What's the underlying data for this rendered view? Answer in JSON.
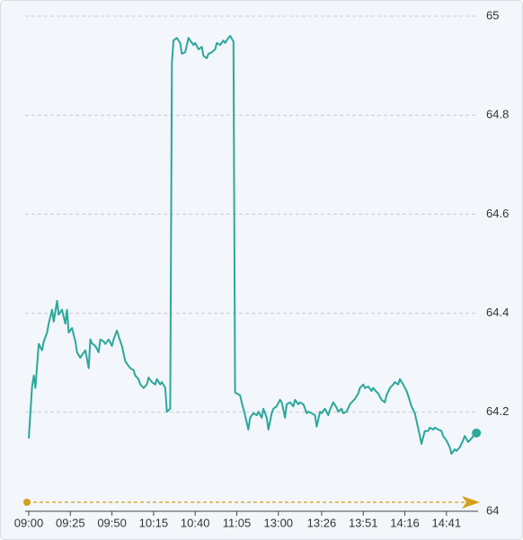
{
  "chart_data": {
    "type": "line",
    "x": [
      0,
      2,
      3,
      4,
      6,
      8,
      9,
      11,
      12,
      14,
      15,
      17,
      18,
      20,
      22,
      23,
      24,
      26,
      28,
      29,
      31,
      32,
      34,
      36,
      37,
      38,
      40,
      42,
      43,
      45,
      46,
      48,
      50,
      51,
      53,
      55,
      56,
      58,
      59,
      61,
      63,
      64,
      66,
      67,
      69,
      71,
      72,
      74,
      76,
      77,
      79,
      80,
      82,
      83,
      85,
      86,
      87,
      89,
      91,
      92,
      94,
      96,
      97,
      99,
      100,
      102,
      104,
      105,
      107,
      108,
      110,
      112,
      113,
      115,
      117,
      118,
      120,
      121,
      123,
      124,
      125,
      127,
      128,
      130,
      132,
      133,
      135,
      137,
      138,
      140,
      141,
      143,
      144,
      146,
      147,
      149,
      151,
      152,
      154,
      155,
      157,
      159,
      160,
      162,
      163,
      165,
      167,
      168,
      170,
      172,
      173,
      175,
      176,
      178,
      180,
      181,
      183,
      185,
      186,
      188,
      189,
      191,
      193,
      194,
      196,
      198,
      199,
      201,
      202,
      204,
      206,
      207,
      209,
      210,
      212,
      214,
      215,
      217,
      219,
      220,
      222,
      223,
      225,
      227,
      228,
      230,
      232,
      233,
      235,
      236,
      238,
      240,
      241,
      243,
      244,
      246,
      248,
      249,
      251,
      253,
      254,
      256,
      257,
      259,
      261,
      262,
      264,
      265,
      267,
      269
    ],
    "series": [
      {
        "color": "#2ba89b",
        "values": [
          64.147,
          64.252,
          64.274,
          64.249,
          64.338,
          64.325,
          64.343,
          64.361,
          64.379,
          64.407,
          64.383,
          64.425,
          64.397,
          64.407,
          64.379,
          64.407,
          64.361,
          64.37,
          64.343,
          64.321,
          64.31,
          64.316,
          64.325,
          64.289,
          64.347,
          64.339,
          64.334,
          64.321,
          64.347,
          64.343,
          64.338,
          64.347,
          64.334,
          64.347,
          64.365,
          64.343,
          64.334,
          64.303,
          64.298,
          64.289,
          64.285,
          64.274,
          64.267,
          64.256,
          64.249,
          64.256,
          64.27,
          64.261,
          64.256,
          64.267,
          64.256,
          64.261,
          64.249,
          64.201,
          64.207,
          64.906,
          64.951,
          64.956,
          64.946,
          64.924,
          64.927,
          64.956,
          64.951,
          64.942,
          64.946,
          64.933,
          64.938,
          64.92,
          64.915,
          64.924,
          64.927,
          64.933,
          64.946,
          64.942,
          64.951,
          64.946,
          64.956,
          64.96,
          64.949,
          64.24,
          64.238,
          64.234,
          64.22,
          64.194,
          64.165,
          64.189,
          64.198,
          64.194,
          64.201,
          64.189,
          64.207,
          64.189,
          64.165,
          64.198,
          64.207,
          64.212,
          64.225,
          64.22,
          64.189,
          64.216,
          64.22,
          64.212,
          64.225,
          64.216,
          64.22,
          64.216,
          64.198,
          64.201,
          64.198,
          64.194,
          64.171,
          64.201,
          64.198,
          64.207,
          64.194,
          64.205,
          64.22,
          64.209,
          64.201,
          64.207,
          64.198,
          64.201,
          64.216,
          64.22,
          64.227,
          64.238,
          64.249,
          64.256,
          64.249,
          64.252,
          64.243,
          64.249,
          64.241,
          64.238,
          64.225,
          64.22,
          64.234,
          64.249,
          64.256,
          64.261,
          64.256,
          64.267,
          64.256,
          64.243,
          64.234,
          64.212,
          64.198,
          64.183,
          64.152,
          64.136,
          64.162,
          64.162,
          64.169,
          64.165,
          64.169,
          64.165,
          64.162,
          64.152,
          64.143,
          64.129,
          64.116,
          64.125,
          64.122,
          64.129,
          64.143,
          64.152,
          64.14,
          64.143,
          64.151,
          64.158
        ]
      }
    ],
    "xlim": [
      0,
      270
    ],
    "xticks": [
      {
        "value": 0,
        "label": "09:00"
      },
      {
        "value": 25,
        "label": "09:25"
      },
      {
        "value": 50,
        "label": "09:50"
      },
      {
        "value": 75,
        "label": "10:15"
      },
      {
        "value": 100,
        "label": "10:40"
      },
      {
        "value": 125,
        "label": "11:05"
      },
      {
        "value": 150,
        "label": "13:00"
      },
      {
        "value": 176,
        "label": "13:26"
      },
      {
        "value": 201,
        "label": "13:51"
      },
      {
        "value": 226,
        "label": "14:16"
      },
      {
        "value": 251,
        "label": "14:41"
      }
    ],
    "ylim": [
      64,
      65
    ],
    "yticks": [
      64,
      64.2,
      64.4,
      64.6,
      64.8,
      65
    ],
    "grid": true
  }
}
